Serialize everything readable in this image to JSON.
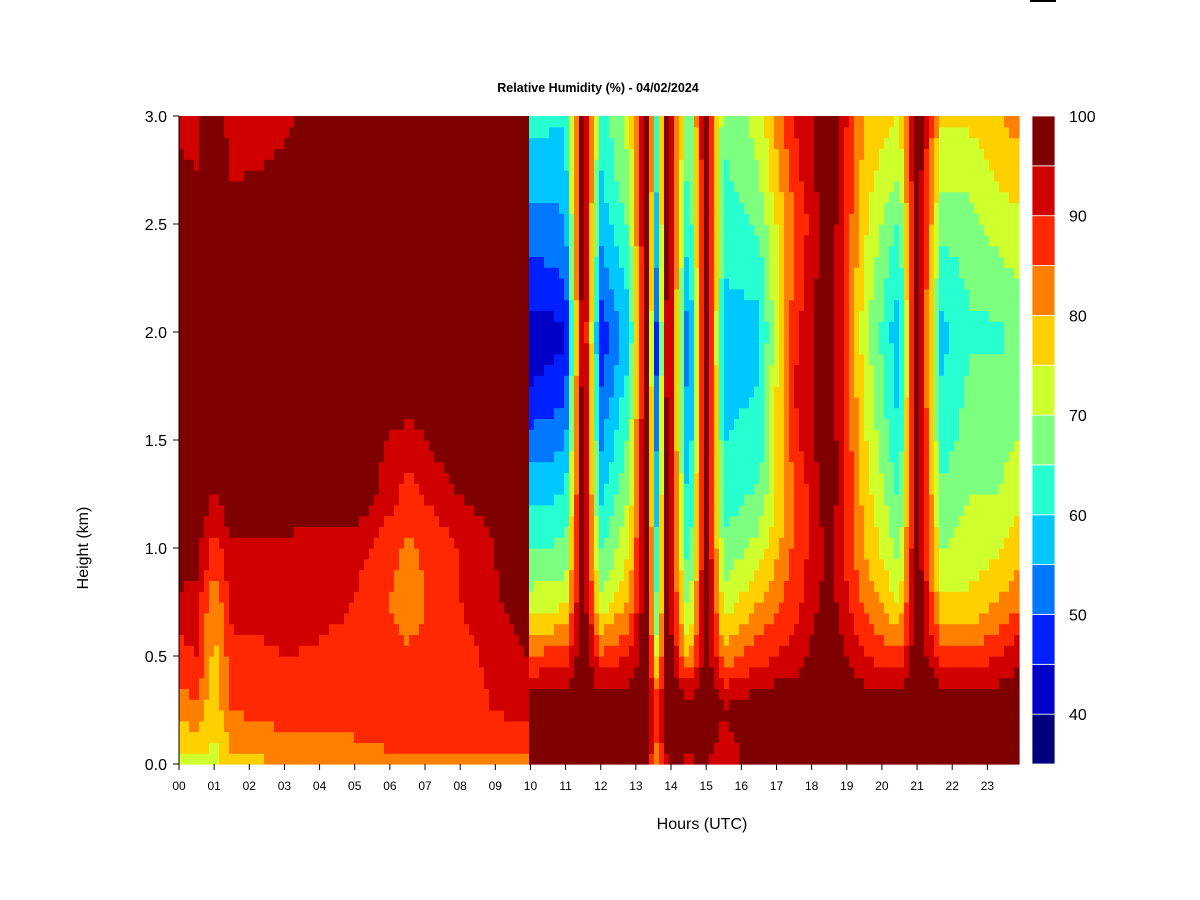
{
  "chart_data": {
    "type": "heatmap",
    "title": "Relative Humidity (%) - 04/02/2024",
    "xlabel": "Hours (UTC)",
    "ylabel": "Height (km)",
    "x_ticks": [
      "00",
      "01",
      "02",
      "03",
      "04",
      "05",
      "06",
      "07",
      "08",
      "09",
      "10",
      "11",
      "12",
      "13",
      "14",
      "15",
      "16",
      "17",
      "18",
      "19",
      "20",
      "21",
      "22",
      "23"
    ],
    "y_ticks": [
      "0.0",
      "0.5",
      "1.0",
      "1.5",
      "2.0",
      "2.5",
      "3.0"
    ],
    "xlim": [
      0,
      23.9
    ],
    "ylim": [
      0,
      3.0
    ],
    "colorbar": {
      "range": [
        35,
        100
      ],
      "step": 5,
      "labels": [
        "40",
        "50",
        "60",
        "70",
        "80",
        "90",
        "100"
      ],
      "colors": [
        "#00007f",
        "#0000c8",
        "#0020ff",
        "#0078ff",
        "#00c8ff",
        "#28ffd0",
        "#7dff80",
        "#d0ff2e",
        "#ffd000",
        "#ff8000",
        "#ff2800",
        "#d00000",
        "#7f0000"
      ]
    },
    "profiles": [
      {
        "hour": 0.0,
        "rh": [
          72,
          82,
          88,
          94,
          98,
          100,
          100,
          100,
          100,
          100,
          100,
          96,
          94
        ]
      },
      {
        "hour": 0.5,
        "rh": [
          74,
          84,
          90,
          93,
          97,
          100,
          100,
          100,
          100,
          100,
          100,
          95,
          93
        ]
      },
      {
        "hour": 1.0,
        "rh": [
          73,
          76,
          78,
          80,
          88,
          94,
          100,
          100,
          100,
          100,
          100,
          100,
          100
        ]
      },
      {
        "hour": 1.5,
        "rh": [
          78,
          85,
          88,
          92,
          94,
          100,
          100,
          100,
          100,
          100,
          100,
          94,
          92
        ]
      },
      {
        "hour": 3.0,
        "rh": [
          80,
          88,
          90,
          92,
          93,
          100,
          100,
          100,
          100,
          100,
          100,
          96,
          94
        ]
      },
      {
        "hour": 5.0,
        "rh": [
          82,
          88,
          89,
          90,
          92,
          100,
          100,
          100,
          100,
          100,
          100,
          100,
          100
        ]
      },
      {
        "hour": 6.5,
        "rh": [
          84,
          90,
          86,
          82,
          84,
          88,
          92,
          100,
          100,
          100,
          100,
          100,
          100
        ]
      },
      {
        "hour": 8.0,
        "rh": [
          84,
          88,
          88,
          90,
          90,
          95,
          100,
          100,
          100,
          100,
          100,
          100,
          100
        ]
      },
      {
        "hour": 9.9,
        "rh": [
          84,
          92,
          95,
          98,
          100,
          100,
          100,
          100,
          100,
          100,
          100,
          100,
          100
        ]
      },
      {
        "hour": 10.0,
        "rh": [
          95,
          100,
          85,
          72,
          65,
          58,
          52,
          45,
          42,
          48,
          52,
          58,
          62
        ]
      },
      {
        "hour": 11.0,
        "rh": [
          96,
          100,
          88,
          74,
          66,
          60,
          54,
          48,
          44,
          50,
          54,
          58,
          60
        ]
      },
      {
        "hour": 11.5,
        "rh": [
          98,
          100,
          100,
          100,
          100,
          100,
          100,
          100,
          100,
          100,
          100,
          100,
          100
        ]
      },
      {
        "hour": 12.0,
        "rh": [
          98,
          100,
          86,
          72,
          64,
          58,
          54,
          50,
          46,
          52,
          56,
          60,
          62
        ]
      },
      {
        "hour": 12.8,
        "rh": [
          96,
          100,
          90,
          80,
          74,
          70,
          66,
          62,
          58,
          62,
          66,
          70,
          72
        ]
      },
      {
        "hour": 13.3,
        "rh": [
          95,
          100,
          100,
          100,
          100,
          100,
          100,
          100,
          100,
          100,
          100,
          100,
          100
        ]
      },
      {
        "hour": 13.6,
        "rh": [
          80,
          90,
          72,
          64,
          60,
          56,
          52,
          48,
          46,
          52,
          56,
          60,
          62
        ]
      },
      {
        "hour": 13.9,
        "rh": [
          96,
          100,
          100,
          100,
          100,
          100,
          100,
          100,
          100,
          100,
          100,
          100,
          100
        ]
      },
      {
        "hour": 14.5,
        "rh": [
          94,
          100,
          78,
          66,
          60,
          56,
          52,
          50,
          48,
          54,
          58,
          62,
          64
        ]
      },
      {
        "hour": 15.0,
        "rh": [
          96,
          100,
          100,
          100,
          100,
          100,
          100,
          100,
          100,
          100,
          100,
          100,
          100
        ]
      },
      {
        "hour": 15.5,
        "rh": [
          90,
          96,
          82,
          72,
          66,
          62,
          60,
          58,
          56,
          60,
          62,
          64,
          66
        ]
      },
      {
        "hour": 16.5,
        "rh": [
          100,
          100,
          88,
          80,
          72,
          66,
          62,
          60,
          58,
          62,
          66,
          70,
          72
        ]
      },
      {
        "hour": 17.5,
        "rh": [
          100,
          100,
          92,
          88,
          86,
          84,
          88,
          90,
          88,
          86,
          84,
          88,
          90
        ]
      },
      {
        "hour": 18.5,
        "rh": [
          100,
          100,
          100,
          98,
          96,
          100,
          100,
          100,
          100,
          100,
          100,
          100,
          100
        ]
      },
      {
        "hour": 19.5,
        "rh": [
          100,
          100,
          90,
          84,
          80,
          78,
          76,
          74,
          72,
          74,
          76,
          78,
          80
        ]
      },
      {
        "hour": 20.5,
        "rh": [
          100,
          100,
          86,
          74,
          68,
          64,
          60,
          58,
          56,
          60,
          64,
          70,
          74
        ]
      },
      {
        "hour": 21.0,
        "rh": [
          100,
          100,
          100,
          100,
          100,
          100,
          100,
          100,
          100,
          100,
          100,
          100,
          100
        ]
      },
      {
        "hour": 21.7,
        "rh": [
          100,
          100,
          88,
          76,
          70,
          66,
          62,
          60,
          58,
          62,
          66,
          72,
          76
        ]
      },
      {
        "hour": 22.5,
        "rh": [
          100,
          100,
          86,
          76,
          72,
          70,
          68,
          66,
          64,
          66,
          68,
          72,
          76
        ]
      },
      {
        "hour": 23.3,
        "rh": [
          100,
          100,
          90,
          80,
          74,
          70,
          68,
          66,
          64,
          68,
          72,
          76,
          80
        ]
      },
      {
        "hour": 23.9,
        "rh": [
          100,
          100,
          94,
          84,
          78,
          74,
          70,
          68,
          66,
          70,
          74,
          78,
          82
        ]
      }
    ],
    "profile_heights_km": [
      0.0,
      0.25,
      0.5,
      0.75,
      1.0,
      1.25,
      1.5,
      1.75,
      2.0,
      2.25,
      2.5,
      2.75,
      3.0
    ]
  }
}
